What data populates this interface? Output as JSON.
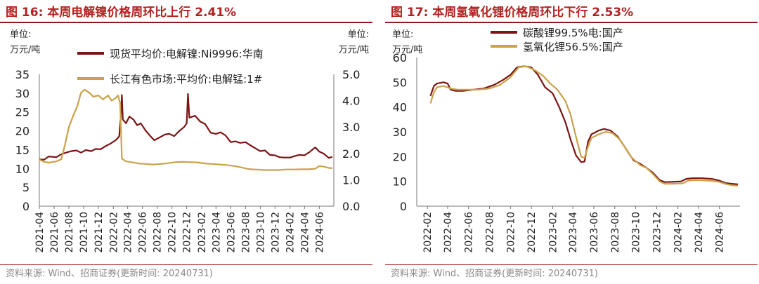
{
  "chart_data": [
    {
      "type": "line",
      "title": "图 16:  本周电解镍价格周环比上行 2.41%",
      "ylabel_left": [
        "单位:",
        "万元/吨"
      ],
      "ylabel_right": [
        "单位:",
        "万元/吨"
      ],
      "ylim_left": [
        0,
        35
      ],
      "ylim_right": [
        0.0,
        5.0
      ],
      "y_ticks_left": [
        "0",
        "5",
        "10",
        "15",
        "20",
        "25",
        "30",
        "35"
      ],
      "y_ticks_right": [
        "0.0",
        "1.0",
        "2.0",
        "3.0",
        "4.0",
        "5.0"
      ],
      "x_ticks": [
        "2021-04",
        "2021-06",
        "2021-08",
        "2021-10",
        "2021-12",
        "2022-02",
        "2022-04",
        "2022-06",
        "2022-08",
        "2022-10",
        "2022-12",
        "2023-02",
        "2023-04",
        "2023-06",
        "2023-08",
        "2023-10",
        "2023-12",
        "2024-02",
        "2024-04",
        "2024-06"
      ],
      "xlim": [
        "2021-04-01",
        "2024-07-31"
      ],
      "legend_position": "top",
      "series": [
        {
          "name": "现货平均价:电解镍:Ni9996:华南",
          "axis": "left",
          "color": "#7b1414",
          "points": [
            [
              "2021-04-01",
              12.5
            ],
            [
              "2021-04-20",
              12.3
            ],
            [
              "2021-05-10",
              13.2
            ],
            [
              "2021-06-10",
              13.0
            ],
            [
              "2021-07-01",
              13.8
            ],
            [
              "2021-07-20",
              14.2
            ],
            [
              "2021-08-10",
              14.6
            ],
            [
              "2021-09-01",
              14.8
            ],
            [
              "2021-09-20",
              14.2
            ],
            [
              "2021-10-10",
              14.9
            ],
            [
              "2021-11-01",
              14.6
            ],
            [
              "2021-11-20",
              15.2
            ],
            [
              "2021-12-10",
              15.1
            ],
            [
              "2022-01-01",
              16.0
            ],
            [
              "2022-01-20",
              16.6
            ],
            [
              "2022-02-10",
              17.5
            ],
            [
              "2022-02-25",
              18.5
            ],
            [
              "2022-03-04",
              24.0
            ],
            [
              "2022-03-08",
              29.5
            ],
            [
              "2022-03-12",
              23.0
            ],
            [
              "2022-03-25",
              22.0
            ],
            [
              "2022-04-08",
              23.8
            ],
            [
              "2022-04-25",
              23.0
            ],
            [
              "2022-05-10",
              21.5
            ],
            [
              "2022-05-25",
              22.0
            ],
            [
              "2022-06-15",
              20.0
            ],
            [
              "2022-07-05",
              18.5
            ],
            [
              "2022-07-20",
              17.5
            ],
            [
              "2022-08-10",
              18.2
            ],
            [
              "2022-09-01",
              19.0
            ],
            [
              "2022-09-20",
              19.2
            ],
            [
              "2022-10-10",
              18.6
            ],
            [
              "2022-11-01",
              20.0
            ],
            [
              "2022-11-20",
              21.0
            ],
            [
              "2022-12-01",
              22.0
            ],
            [
              "2022-12-06",
              29.8
            ],
            [
              "2022-12-12",
              23.5
            ],
            [
              "2023-01-05",
              24.0
            ],
            [
              "2023-01-25",
              22.5
            ],
            [
              "2023-02-15",
              21.8
            ],
            [
              "2023-03-10",
              19.5
            ],
            [
              "2023-04-01",
              19.2
            ],
            [
              "2023-04-20",
              19.6
            ],
            [
              "2023-05-10",
              18.8
            ],
            [
              "2023-06-01",
              17.0
            ],
            [
              "2023-06-20",
              17.2
            ],
            [
              "2023-07-10",
              16.8
            ],
            [
              "2023-08-01",
              17.0
            ],
            [
              "2023-08-20",
              16.2
            ],
            [
              "2023-09-10",
              15.4
            ],
            [
              "2023-10-01",
              14.6
            ],
            [
              "2023-10-20",
              14.8
            ],
            [
              "2023-11-10",
              13.6
            ],
            [
              "2023-12-01",
              13.5
            ],
            [
              "2023-12-20",
              13.0
            ],
            [
              "2024-01-10",
              12.9
            ],
            [
              "2024-02-01",
              12.9
            ],
            [
              "2024-02-20",
              13.3
            ],
            [
              "2024-03-10",
              13.6
            ],
            [
              "2024-04-01",
              13.5
            ],
            [
              "2024-04-20",
              14.3
            ],
            [
              "2024-05-15",
              15.6
            ],
            [
              "2024-06-01",
              14.5
            ],
            [
              "2024-06-20",
              13.9
            ],
            [
              "2024-07-10",
              12.8
            ],
            [
              "2024-07-25",
              13.1
            ]
          ]
        },
        {
          "name": "长江有色市场:平均价:电解锰:1#",
          "axis": "right",
          "color": "#c9a24a",
          "points": [
            [
              "2021-04-01",
              1.77
            ],
            [
              "2021-04-20",
              1.68
            ],
            [
              "2021-05-10",
              1.65
            ],
            [
              "2021-06-10",
              1.7
            ],
            [
              "2021-07-01",
              1.78
            ],
            [
              "2021-07-15",
              2.3
            ],
            [
              "2021-08-01",
              3.0
            ],
            [
              "2021-08-20",
              3.45
            ],
            [
              "2021-09-05",
              3.8
            ],
            [
              "2021-09-20",
              4.3
            ],
            [
              "2021-10-05",
              4.42
            ],
            [
              "2021-10-25",
              4.3
            ],
            [
              "2021-11-10",
              4.15
            ],
            [
              "2021-12-01",
              4.2
            ],
            [
              "2021-12-20",
              4.05
            ],
            [
              "2022-01-10",
              4.2
            ],
            [
              "2022-01-25",
              4.0
            ],
            [
              "2022-02-10",
              4.1
            ],
            [
              "2022-02-20",
              4.2
            ],
            [
              "2022-03-01",
              3.9
            ],
            [
              "2022-03-08",
              1.8
            ],
            [
              "2022-03-25",
              1.7
            ],
            [
              "2022-04-15",
              1.67
            ],
            [
              "2022-05-15",
              1.62
            ],
            [
              "2022-06-15",
              1.6
            ],
            [
              "2022-07-15",
              1.58
            ],
            [
              "2022-08-15",
              1.6
            ],
            [
              "2022-09-15",
              1.63
            ],
            [
              "2022-10-15",
              1.67
            ],
            [
              "2022-11-15",
              1.68
            ],
            [
              "2022-12-15",
              1.67
            ],
            [
              "2023-01-15",
              1.66
            ],
            [
              "2023-02-15",
              1.62
            ],
            [
              "2023-03-15",
              1.6
            ],
            [
              "2023-04-15",
              1.58
            ],
            [
              "2023-05-15",
              1.56
            ],
            [
              "2023-06-15",
              1.52
            ],
            [
              "2023-07-15",
              1.47
            ],
            [
              "2023-08-01",
              1.43
            ],
            [
              "2023-08-20",
              1.4
            ],
            [
              "2023-09-15",
              1.39
            ],
            [
              "2023-10-15",
              1.37
            ],
            [
              "2023-11-15",
              1.37
            ],
            [
              "2023-12-15",
              1.37
            ],
            [
              "2024-01-15",
              1.39
            ],
            [
              "2024-02-15",
              1.39
            ],
            [
              "2024-03-15",
              1.4
            ],
            [
              "2024-04-15",
              1.4
            ],
            [
              "2024-05-15",
              1.42
            ],
            [
              "2024-06-01",
              1.52
            ],
            [
              "2024-06-20",
              1.5
            ],
            [
              "2024-07-10",
              1.45
            ],
            [
              "2024-07-25",
              1.44
            ]
          ]
        }
      ]
    },
    {
      "type": "line",
      "title": "图 17:  本周氢氧化锂价格周环比下行 2.53%",
      "ylabel_left": [
        "单位:",
        "万元/吨"
      ],
      "ylim_left": [
        0,
        60
      ],
      "y_ticks_left": [
        "0",
        "10",
        "20",
        "30",
        "40",
        "50",
        "60"
      ],
      "x_ticks": [
        "2022-02",
        "2022-04",
        "2022-06",
        "2022-08",
        "2022-10",
        "2022-12",
        "2023-02",
        "2023-04",
        "2023-06",
        "2023-08",
        "2023-10",
        "2023-12",
        "2024-02",
        "2024-04",
        "2024-06"
      ],
      "xlim": [
        "2022-01-01",
        "2024-07-31"
      ],
      "legend_position": "top",
      "series": [
        {
          "name": "碳酸锂99.5%电:国产",
          "axis": "left",
          "color": "#7b1414",
          "points": [
            [
              "2022-02-10",
              44.5
            ],
            [
              "2022-02-20",
              48.5
            ],
            [
              "2022-03-01",
              49.5
            ],
            [
              "2022-03-20",
              50.0
            ],
            [
              "2022-04-01",
              49.5
            ],
            [
              "2022-04-10",
              47.0
            ],
            [
              "2022-04-25",
              46.5
            ],
            [
              "2022-05-15",
              46.5
            ],
            [
              "2022-06-15",
              47.0
            ],
            [
              "2022-07-15",
              47.5
            ],
            [
              "2022-08-15",
              49.0
            ],
            [
              "2022-09-10",
              51.0
            ],
            [
              "2022-10-01",
              53.0
            ],
            [
              "2022-10-20",
              56.0
            ],
            [
              "2022-11-10",
              56.5
            ],
            [
              "2022-12-01",
              56.0
            ],
            [
              "2022-12-20",
              53.0
            ],
            [
              "2023-01-10",
              48.0
            ],
            [
              "2023-02-01",
              45.5
            ],
            [
              "2023-02-20",
              40.0
            ],
            [
              "2023-03-10",
              34.0
            ],
            [
              "2023-03-25",
              27.0
            ],
            [
              "2023-04-10",
              20.5
            ],
            [
              "2023-04-25",
              17.8
            ],
            [
              "2023-05-05",
              18.0
            ],
            [
              "2023-05-15",
              26.0
            ],
            [
              "2023-05-25",
              29.0
            ],
            [
              "2023-06-15",
              30.5
            ],
            [
              "2023-07-01",
              31.2
            ],
            [
              "2023-07-20",
              30.5
            ],
            [
              "2023-08-10",
              28.0
            ],
            [
              "2023-08-25",
              25.0
            ],
            [
              "2023-09-10",
              21.5
            ],
            [
              "2023-09-25",
              18.5
            ],
            [
              "2023-10-15",
              17.0
            ],
            [
              "2023-11-01",
              15.5
            ],
            [
              "2023-11-20",
              13.5
            ],
            [
              "2023-12-10",
              10.5
            ],
            [
              "2023-12-25",
              9.7
            ],
            [
              "2024-01-15",
              9.8
            ],
            [
              "2024-02-10",
              10.0
            ],
            [
              "2024-02-25",
              11.0
            ],
            [
              "2024-03-15",
              11.3
            ],
            [
              "2024-04-10",
              11.3
            ],
            [
              "2024-05-10",
              11.0
            ],
            [
              "2024-06-01",
              10.3
            ],
            [
              "2024-06-20",
              9.3
            ],
            [
              "2024-07-10",
              9.0
            ],
            [
              "2024-07-25",
              8.8
            ]
          ]
        },
        {
          "name": "氢氧化锂56.5%:国产",
          "axis": "left",
          "color": "#c9a24a",
          "points": [
            [
              "2022-02-10",
              41.5
            ],
            [
              "2022-02-20",
              46.0
            ],
            [
              "2022-03-01",
              48.0
            ],
            [
              "2022-03-20",
              48.5
            ],
            [
              "2022-04-10",
              47.5
            ],
            [
              "2022-05-01",
              47.0
            ],
            [
              "2022-06-01",
              47.0
            ],
            [
              "2022-07-01",
              47.0
            ],
            [
              "2022-08-01",
              47.5
            ],
            [
              "2022-09-01",
              49.0
            ],
            [
              "2022-10-01",
              52.0
            ],
            [
              "2022-10-25",
              56.0
            ],
            [
              "2022-11-15",
              56.5
            ],
            [
              "2022-12-10",
              55.0
            ],
            [
              "2023-01-05",
              52.5
            ],
            [
              "2023-01-25",
              49.5
            ],
            [
              "2023-02-15",
              47.0
            ],
            [
              "2023-03-10",
              42.5
            ],
            [
              "2023-03-25",
              37.0
            ],
            [
              "2023-04-10",
              28.0
            ],
            [
              "2023-04-25",
              20.0
            ],
            [
              "2023-05-05",
              19.5
            ],
            [
              "2023-05-15",
              24.0
            ],
            [
              "2023-05-25",
              27.5
            ],
            [
              "2023-06-15",
              29.0
            ],
            [
              "2023-07-05",
              30.0
            ],
            [
              "2023-07-25",
              29.5
            ],
            [
              "2023-08-15",
              27.0
            ],
            [
              "2023-09-01",
              23.5
            ],
            [
              "2023-09-20",
              19.5
            ],
            [
              "2023-10-15",
              16.5
            ],
            [
              "2023-11-01",
              15.5
            ],
            [
              "2023-11-20",
              13.0
            ],
            [
              "2023-12-10",
              10.0
            ],
            [
              "2023-12-25",
              9.0
            ],
            [
              "2024-01-15",
              9.0
            ],
            [
              "2024-02-15",
              9.2
            ],
            [
              "2024-03-01",
              10.3
            ],
            [
              "2024-03-20",
              10.5
            ],
            [
              "2024-04-15",
              10.4
            ],
            [
              "2024-05-10",
              10.2
            ],
            [
              "2024-06-01",
              9.8
            ],
            [
              "2024-06-20",
              8.9
            ],
            [
              "2024-07-10",
              8.4
            ],
            [
              "2024-07-25",
              8.2
            ]
          ]
        }
      ]
    }
  ],
  "footer": {
    "source_left": "资料来源:  Wind、招商证券(更新时间:  20240731)",
    "source_right": "资料来源:  Wind、招商证券(更新时间:  20240731)"
  }
}
